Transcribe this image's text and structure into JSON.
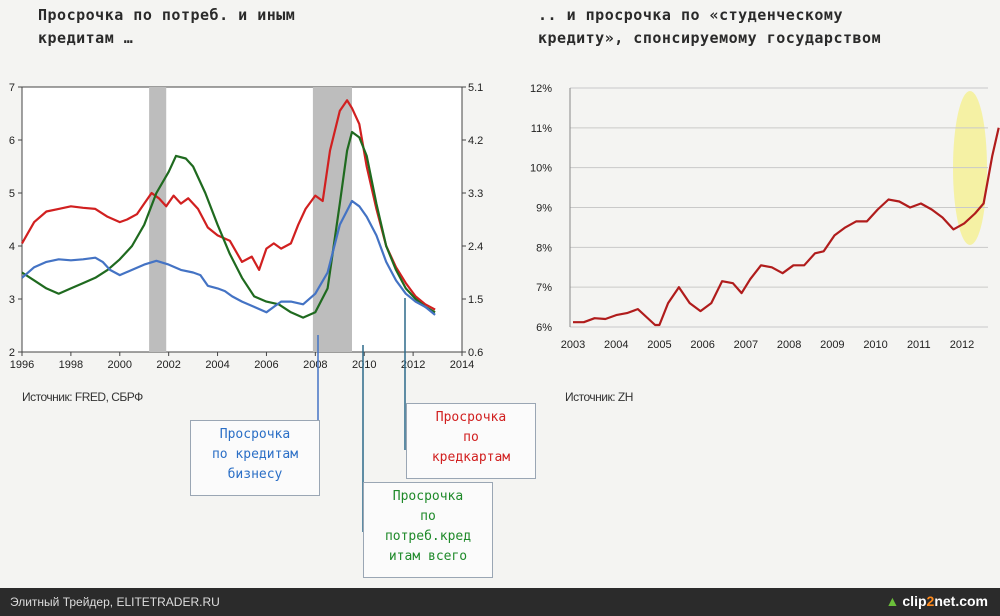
{
  "left_title": [
    "Просрочка по потреб. и иным",
    "кредитам …"
  ],
  "right_title": [
    ".. и просрочка по «студенческому",
    "кредиту», спонсируемому государством"
  ],
  "left_source": "Источник: FRED, СБРФ",
  "right_source": "Источник: ZH",
  "callouts": {
    "business": {
      "lines": [
        "Просрочка",
        "по кредитам",
        "бизнесу"
      ],
      "color": "#2b6fc6"
    },
    "cards": {
      "lines": [
        "Просрочка",
        "по",
        "кредкартам"
      ],
      "color": "#d12020"
    },
    "consumer": {
      "lines": [
        "Просрочка",
        "по",
        "потреб.кред",
        "итам всего"
      ],
      "color": "#1f8a2a"
    }
  },
  "footer": {
    "text": "Элитный Трейдер, ELITETRADER.RU",
    "logo_pre": "clip",
    "logo_two": "2",
    "logo_post": "net.com"
  },
  "chart_data": [
    {
      "type": "line",
      "x_ticks": [
        "1996",
        "1998",
        "2000",
        "2002",
        "2004",
        "2006",
        "2008",
        "2010",
        "2012",
        "2014"
      ],
      "y_left_ticks": [
        "2",
        "3",
        "4",
        "5",
        "6",
        "7"
      ],
      "y_right_ticks": [
        "0.6",
        "1.5",
        "2.4",
        "3.3",
        "4.2",
        "5.1"
      ],
      "xlim": [
        1996,
        2014
      ],
      "ylim_left": [
        2,
        7
      ],
      "ylim_right": [
        0.6,
        5.1
      ],
      "shaded_periods": [
        [
          2001.2,
          2001.9
        ],
        [
          2007.9,
          2009.5
        ]
      ],
      "series": [
        {
          "color": "#d12020",
          "axis": "left",
          "points": [
            [
              1996,
              4.05
            ],
            [
              1996.5,
              4.45
            ],
            [
              1997,
              4.65
            ],
            [
              1997.5,
              4.7
            ],
            [
              1998,
              4.75
            ],
            [
              1998.5,
              4.72
            ],
            [
              1999,
              4.7
            ],
            [
              1999.5,
              4.55
            ],
            [
              2000,
              4.45
            ],
            [
              2000.3,
              4.5
            ],
            [
              2000.7,
              4.6
            ],
            [
              2001,
              4.8
            ],
            [
              2001.3,
              5.0
            ],
            [
              2001.6,
              4.9
            ],
            [
              2001.9,
              4.75
            ],
            [
              2002.2,
              4.95
            ],
            [
              2002.5,
              4.8
            ],
            [
              2002.8,
              4.9
            ],
            [
              2003.2,
              4.7
            ],
            [
              2003.6,
              4.35
            ],
            [
              2004,
              4.2
            ],
            [
              2004.5,
              4.1
            ],
            [
              2005,
              3.7
            ],
            [
              2005.4,
              3.8
            ],
            [
              2005.7,
              3.55
            ],
            [
              2006,
              3.95
            ],
            [
              2006.3,
              4.05
            ],
            [
              2006.6,
              3.95
            ],
            [
              2007,
              4.05
            ],
            [
              2007.3,
              4.4
            ],
            [
              2007.6,
              4.7
            ],
            [
              2008,
              4.95
            ],
            [
              2008.3,
              4.85
            ],
            [
              2008.6,
              5.8
            ],
            [
              2009,
              6.55
            ],
            [
              2009.3,
              6.75
            ],
            [
              2009.5,
              6.6
            ],
            [
              2009.8,
              6.3
            ],
            [
              2010.1,
              5.5
            ],
            [
              2010.5,
              4.7
            ],
            [
              2010.9,
              4.0
            ],
            [
              2011.3,
              3.6
            ],
            [
              2011.7,
              3.3
            ],
            [
              2012.1,
              3.05
            ],
            [
              2012.5,
              2.9
            ],
            [
              2012.9,
              2.8
            ]
          ]
        },
        {
          "color": "#1f6a1f",
          "axis": "left",
          "points": [
            [
              1996,
              3.5
            ],
            [
              1996.5,
              3.35
            ],
            [
              1997,
              3.2
            ],
            [
              1997.5,
              3.1
            ],
            [
              1998,
              3.2
            ],
            [
              1998.5,
              3.3
            ],
            [
              1999,
              3.4
            ],
            [
              1999.5,
              3.55
            ],
            [
              2000,
              3.75
            ],
            [
              2000.5,
              4.0
            ],
            [
              2001,
              4.4
            ],
            [
              2001.5,
              5.0
            ],
            [
              2002,
              5.4
            ],
            [
              2002.3,
              5.7
            ],
            [
              2002.7,
              5.65
            ],
            [
              2003,
              5.5
            ],
            [
              2003.5,
              5.0
            ],
            [
              2004,
              4.4
            ],
            [
              2004.5,
              3.85
            ],
            [
              2005,
              3.4
            ],
            [
              2005.5,
              3.05
            ],
            [
              2006,
              2.95
            ],
            [
              2006.5,
              2.9
            ],
            [
              2007,
              2.75
            ],
            [
              2007.5,
              2.65
            ],
            [
              2008,
              2.75
            ],
            [
              2008.5,
              3.2
            ],
            [
              2009,
              4.8
            ],
            [
              2009.3,
              5.8
            ],
            [
              2009.5,
              6.15
            ],
            [
              2009.8,
              6.05
            ],
            [
              2010.1,
              5.7
            ],
            [
              2010.5,
              4.8
            ],
            [
              2010.9,
              4.0
            ],
            [
              2011.3,
              3.55
            ],
            [
              2011.7,
              3.2
            ],
            [
              2012.1,
              3.0
            ],
            [
              2012.5,
              2.85
            ],
            [
              2012.9,
              2.75
            ]
          ]
        },
        {
          "color": "#4473c4",
          "axis": "left",
          "points": [
            [
              1996,
              3.4
            ],
            [
              1996.5,
              3.6
            ],
            [
              1997,
              3.7
            ],
            [
              1997.5,
              3.75
            ],
            [
              1998,
              3.73
            ],
            [
              1998.5,
              3.75
            ],
            [
              1999,
              3.78
            ],
            [
              1999.3,
              3.7
            ],
            [
              1999.6,
              3.55
            ],
            [
              2000,
              3.45
            ],
            [
              2000.5,
              3.55
            ],
            [
              2001,
              3.65
            ],
            [
              2001.5,
              3.72
            ],
            [
              2002,
              3.65
            ],
            [
              2002.5,
              3.55
            ],
            [
              2003,
              3.5
            ],
            [
              2003.3,
              3.45
            ],
            [
              2003.6,
              3.25
            ],
            [
              2004,
              3.2
            ],
            [
              2004.3,
              3.15
            ],
            [
              2004.6,
              3.05
            ],
            [
              2005,
              2.95
            ],
            [
              2005.5,
              2.85
            ],
            [
              2006,
              2.75
            ],
            [
              2006.3,
              2.85
            ],
            [
              2006.6,
              2.95
            ],
            [
              2007,
              2.95
            ],
            [
              2007.5,
              2.9
            ],
            [
              2008,
              3.1
            ],
            [
              2008.5,
              3.5
            ],
            [
              2009,
              4.4
            ],
            [
              2009.5,
              4.85
            ],
            [
              2009.8,
              4.75
            ],
            [
              2010.1,
              4.55
            ],
            [
              2010.5,
              4.2
            ],
            [
              2010.9,
              3.7
            ],
            [
              2011.3,
              3.35
            ],
            [
              2011.7,
              3.1
            ],
            [
              2012.1,
              2.95
            ],
            [
              2012.5,
              2.85
            ],
            [
              2012.9,
              2.7
            ]
          ]
        }
      ]
    },
    {
      "type": "line",
      "x_ticks": [
        "2003",
        "2004",
        "2005",
        "2006",
        "2007",
        "2008",
        "2009",
        "2010",
        "2011",
        "2012"
      ],
      "y_ticks": [
        "6%",
        "7%",
        "8%",
        "9%",
        "10%",
        "11%",
        "12%"
      ],
      "ylim": [
        6,
        12
      ],
      "series": [
        {
          "color": "#b01c1c",
          "points": [
            [
              2003,
              6.12
            ],
            [
              2003.25,
              6.12
            ],
            [
              2003.5,
              6.22
            ],
            [
              2003.75,
              6.2
            ],
            [
              2004,
              6.3
            ],
            [
              2004.25,
              6.35
            ],
            [
              2004.5,
              6.45
            ],
            [
              2004.75,
              6.2
            ],
            [
              2004.9,
              6.05
            ],
            [
              2005,
              6.05
            ],
            [
              2005.2,
              6.6
            ],
            [
              2005.45,
              7.0
            ],
            [
              2005.7,
              6.6
            ],
            [
              2005.95,
              6.4
            ],
            [
              2006.2,
              6.6
            ],
            [
              2006.45,
              7.15
            ],
            [
              2006.7,
              7.1
            ],
            [
              2006.9,
              6.85
            ],
            [
              2007.1,
              7.2
            ],
            [
              2007.35,
              7.55
            ],
            [
              2007.6,
              7.5
            ],
            [
              2007.85,
              7.35
            ],
            [
              2008.1,
              7.55
            ],
            [
              2008.35,
              7.55
            ],
            [
              2008.6,
              7.85
            ],
            [
              2008.8,
              7.9
            ],
            [
              2009.05,
              8.3
            ],
            [
              2009.3,
              8.5
            ],
            [
              2009.55,
              8.65
            ],
            [
              2009.8,
              8.65
            ],
            [
              2010.05,
              8.95
            ],
            [
              2010.3,
              9.2
            ],
            [
              2010.55,
              9.15
            ],
            [
              2010.8,
              9.0
            ],
            [
              2011.05,
              9.1
            ],
            [
              2011.3,
              8.95
            ],
            [
              2011.55,
              8.75
            ],
            [
              2011.8,
              8.45
            ],
            [
              2012.05,
              8.6
            ],
            [
              2012.3,
              8.85
            ],
            [
              2012.5,
              9.1
            ],
            [
              2012.7,
              10.3
            ],
            [
              2012.85,
              11.0
            ]
          ]
        }
      ]
    }
  ]
}
